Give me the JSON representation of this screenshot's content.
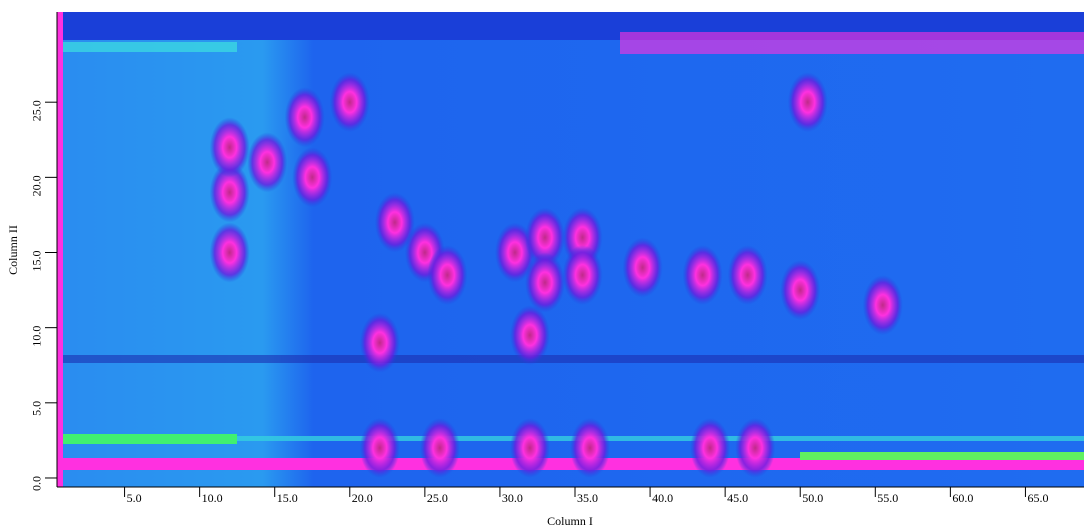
{
  "chart_data": {
    "type": "contour",
    "x_label": "Column I",
    "y_label": "Column II",
    "xlim": [
      0.5,
      68.9
    ],
    "ylim": [
      -0.6,
      31.0
    ],
    "xticks": [
      {
        "value": 5,
        "label": "5.0"
      },
      {
        "value": 10,
        "label": "10.0"
      },
      {
        "value": 15,
        "label": "15.0"
      },
      {
        "value": 20,
        "label": "20.0"
      },
      {
        "value": 25,
        "label": "25.0"
      },
      {
        "value": 30,
        "label": "30.0"
      },
      {
        "value": 35,
        "label": "35.0"
      },
      {
        "value": 40,
        "label": "40.0"
      },
      {
        "value": 45,
        "label": "45.0"
      },
      {
        "value": 50,
        "label": "50.0"
      },
      {
        "value": 55,
        "label": "55.0"
      },
      {
        "value": 60,
        "label": "60.0"
      },
      {
        "value": 65,
        "label": "65.0"
      }
    ],
    "yticks": [
      {
        "value": 0,
        "label": "0.0"
      },
      {
        "value": 5,
        "label": "5.0"
      },
      {
        "value": 10,
        "label": "10.0"
      },
      {
        "value": 15,
        "label": "15.0"
      },
      {
        "value": 20,
        "label": "20.0"
      },
      {
        "value": 25,
        "label": "25.0"
      }
    ],
    "peak_color": "#ff30e0",
    "x": [
      12,
      12,
      12,
      14.5,
      17,
      20,
      17.5,
      22,
      23,
      25,
      26.5,
      31,
      32,
      32,
      33,
      33,
      35.5,
      35.5,
      39.5,
      43.5,
      46.5,
      50,
      55.5,
      50.5,
      22,
      26,
      36,
      44,
      47
    ],
    "y": [
      19,
      15,
      22,
      21,
      24,
      25,
      20,
      9,
      17,
      15,
      13.5,
      15,
      9.5,
      2,
      16,
      13,
      16,
      13.5,
      14,
      13.5,
      13.5,
      12.5,
      11.5,
      25,
      2,
      2,
      2,
      2,
      2
    ]
  }
}
